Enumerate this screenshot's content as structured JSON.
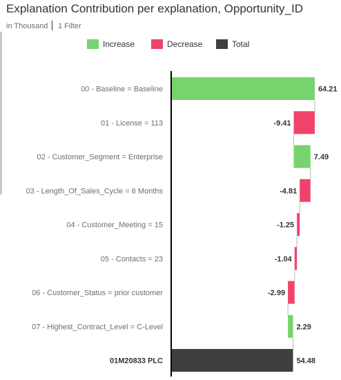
{
  "header": {
    "title": "Explanation Contribution per explanation, Opportunity_ID",
    "unit": "in Thousand",
    "filter": "1 Filter"
  },
  "legend": [
    {
      "label": "Increase",
      "color": "#77d36e"
    },
    {
      "label": "Decrease",
      "color": "#f0436b"
    },
    {
      "label": "Total",
      "color": "#3f3f3f"
    }
  ],
  "chart_data": {
    "type": "bar",
    "subtype": "waterfall",
    "orientation": "horizontal",
    "title": "Explanation Contribution per explanation, Opportunity_ID",
    "unit": "in Thousand",
    "categories": [
      "00 - Baseline = Baseline",
      "01 - License = 113",
      "02 - Customer_Segment = Enterprise",
      "03 - Length_Of_Sales_Cycle = 6 Months",
      "04 - Customer_Meeting = 15",
      "05 - Contacts = 23",
      "06 - Customer_Status = prior customer",
      "07 - Highest_Contract_Level = C-Level",
      "01M20833 PLC"
    ],
    "values": [
      64.21,
      -9.41,
      7.49,
      -4.81,
      -1.25,
      -1.04,
      -2.99,
      2.29,
      54.48
    ],
    "value_labels": [
      "64.21",
      "-9.41",
      "7.49",
      "-4.81",
      "-1.25",
      "-1.04",
      "-2.99",
      "2.29",
      "54.48"
    ],
    "bar_kind": [
      "increase",
      "decrease",
      "increase",
      "decrease",
      "decrease",
      "decrease",
      "decrease",
      "increase",
      "total"
    ],
    "legend_position": "top",
    "grid": false,
    "xlim": [
      0,
      66
    ]
  }
}
